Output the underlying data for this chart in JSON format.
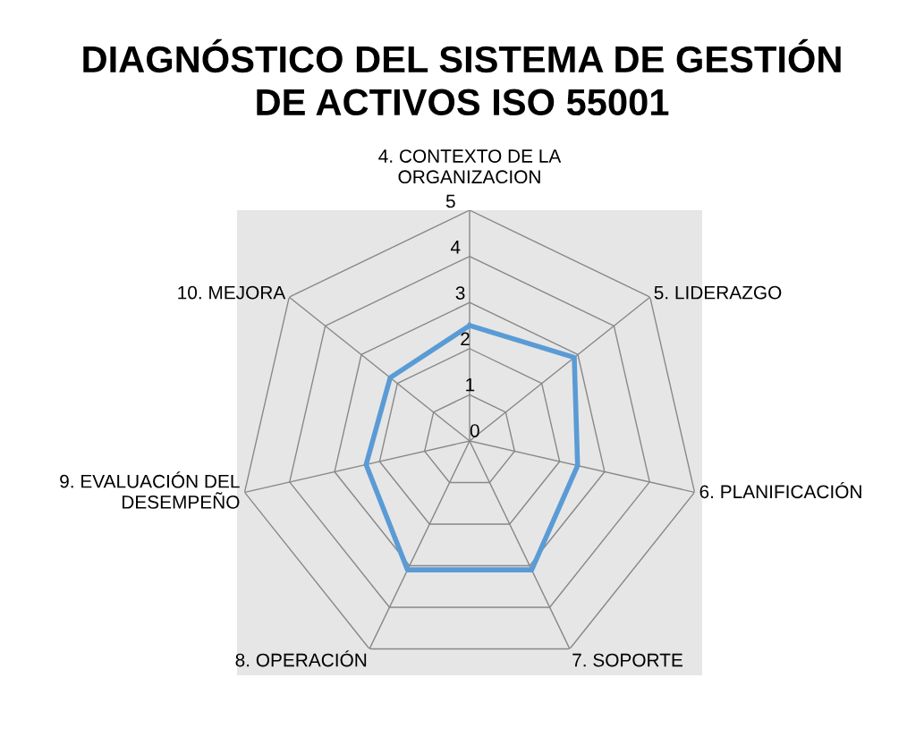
{
  "chart_data": {
    "type": "radar",
    "title": "DIAGNÓSTICO DEL SISTEMA DE GESTIÓN\nDE ACTIVOS ISO 55001",
    "categories": [
      "4. CONTEXTO DE LA\nORGANIZACION",
      "5. LIDERAZGO",
      "6. PLANIFICACIÓN",
      "7. SOPORTE",
      "8. OPERACIÓN",
      "9. EVALUACIÓN DEL\nDESEMPEÑO",
      "10. MEJORA"
    ],
    "series": [
      {
        "color": "#5b9bd5",
        "values": [
          2.5,
          2.9,
          2.4,
          3.1,
          3.1,
          2.3,
          2.2
        ]
      }
    ],
    "ylim": [
      0,
      5
    ],
    "yticks": [
      0,
      1,
      2,
      3,
      4,
      5
    ],
    "grid": true,
    "marker": "none",
    "line_style": "solid"
  }
}
